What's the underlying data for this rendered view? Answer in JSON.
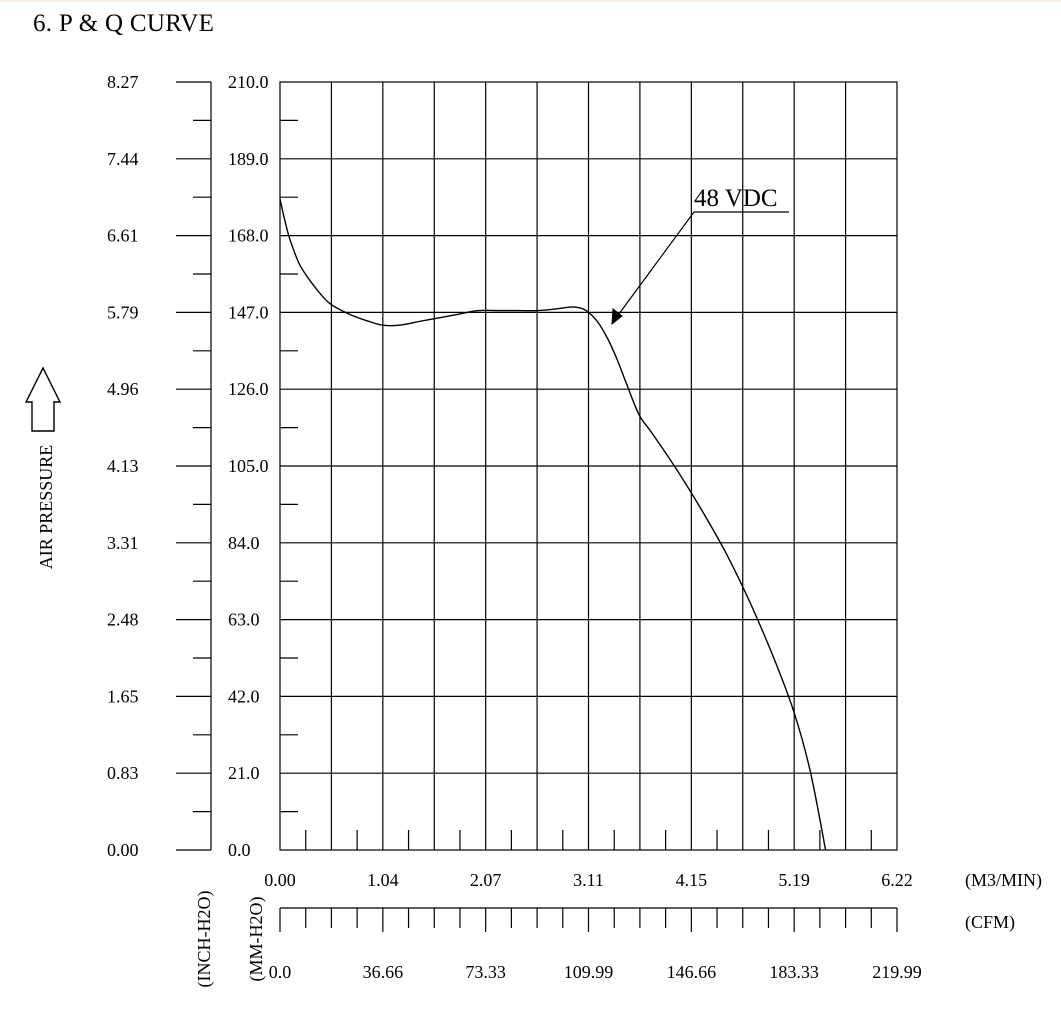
{
  "page": {
    "title": "6. P & Q CURVE"
  },
  "chart_data": {
    "type": "line",
    "title": "6. P & Q CURVE",
    "ylabel": "AIR PRESSURE",
    "y_unit_inch": "(INCH-H2O)",
    "y_unit_mm": "(MM-H2O)",
    "x_unit_m3": "(M3/MIN)",
    "x_unit_cfm": "(CFM)",
    "y_ticks_inch": [
      "0.00",
      "0.83",
      "1.65",
      "2.48",
      "3.31",
      "4.13",
      "4.96",
      "5.79",
      "6.61",
      "7.44",
      "8.27"
    ],
    "y_ticks_mm": [
      "0.0",
      "21.0",
      "42.0",
      "63.0",
      "84.0",
      "105.0",
      "126.0",
      "147.0",
      "168.0",
      "189.0",
      "210.0"
    ],
    "x_ticks_m3": [
      "0.00",
      "1.04",
      "2.07",
      "3.11",
      "4.15",
      "5.19",
      "6.22"
    ],
    "x_ticks_cfm": [
      "0.0",
      "36.66",
      "73.33",
      "109.99",
      "146.66",
      "183.33",
      "219.99"
    ],
    "xlim": [
      0,
      6.22
    ],
    "ylim": [
      0,
      210
    ],
    "grid": true,
    "series": [
      {
        "name": "48 VDC",
        "x": [
          0.0,
          0.05,
          0.1,
          0.2,
          0.35,
          0.5,
          0.7,
          0.9,
          1.04,
          1.2,
          1.4,
          1.6,
          1.8,
          2.0,
          2.2,
          2.4,
          2.6,
          2.8,
          2.95,
          3.05,
          3.11,
          3.2,
          3.3,
          3.4,
          3.5,
          3.62,
          3.75,
          4.0,
          4.25,
          4.5,
          4.75,
          5.0,
          5.19,
          5.35,
          5.5
        ],
        "y": [
          178,
          172,
          167,
          160,
          154,
          149.5,
          146.5,
          144.5,
          143.5,
          143.5,
          144.5,
          145.5,
          146.5,
          147.5,
          147.5,
          147.5,
          147.5,
          148.0,
          148.5,
          148.0,
          147.0,
          144.5,
          140.0,
          134.0,
          127.0,
          119.0,
          114.0,
          104.0,
          93.0,
          81.0,
          67.0,
          51.0,
          37.0,
          21.0,
          0.0
        ]
      }
    ]
  }
}
